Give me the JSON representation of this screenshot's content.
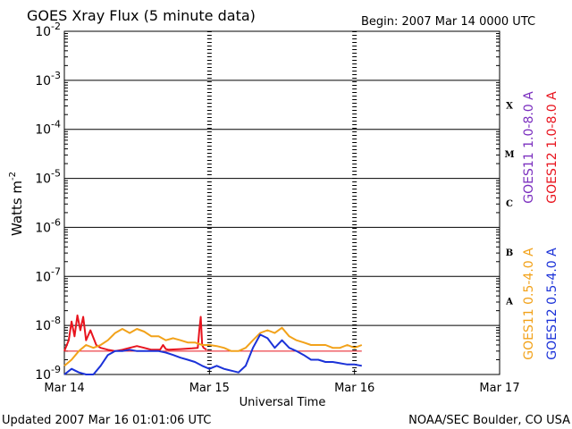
{
  "header": {
    "title": "GOES Xray Flux (5 minute data)",
    "begin": "Begin:  2007 Mar 14 0000 UTC"
  },
  "footer": {
    "updated": "Updated 2007 Mar 16 01:01:06 UTC",
    "credit": "NOAA/SEC Boulder, CO USA"
  },
  "colors": {
    "grid": "#000000",
    "goes11_long": "#7b2fbf",
    "goes12_long": "#e8141e",
    "goes11_short": "#f2a21a",
    "goes12_short": "#1b32d8",
    "threshold": "#e8141e"
  },
  "chart_data": {
    "type": "line",
    "title": "GOES Xray Flux (5 minute data)",
    "xlabel": "Universal Time",
    "ylabel": "Watts m",
    "ylabel_sup": "-2",
    "y_scale": "log",
    "ylim": [
      1e-09,
      0.01
    ],
    "xlim_days": [
      0,
      3
    ],
    "x_ticks": [
      {
        "day": 0,
        "label": "Mar 14"
      },
      {
        "day": 1,
        "label": "Mar 15"
      },
      {
        "day": 2,
        "label": "Mar 16"
      },
      {
        "day": 3,
        "label": "Mar 17"
      }
    ],
    "y_ticks": [
      {
        "base": "10",
        "exp": "-9"
      },
      {
        "base": "10",
        "exp": "-8"
      },
      {
        "base": "10",
        "exp": "-7"
      },
      {
        "base": "10",
        "exp": "-6"
      },
      {
        "base": "10",
        "exp": "-5"
      },
      {
        "base": "10",
        "exp": "-4"
      },
      {
        "base": "10",
        "exp": "-3"
      },
      {
        "base": "10",
        "exp": "-2"
      }
    ],
    "flare_classes": [
      "A",
      "B",
      "C",
      "M",
      "X"
    ],
    "grid": true,
    "legend": [
      {
        "name": "GOES11 1.0-8.0 A",
        "color": "#7b2fbf"
      },
      {
        "name": "GOES12 1.0-8.0 A",
        "color": "#e8141e"
      },
      {
        "name": "GOES11 0.5-4.0 A",
        "color": "#f2a21a"
      },
      {
        "name": "GOES12 0.5-4.0 A",
        "color": "#1b32d8"
      }
    ],
    "series": [
      {
        "name": "GOES12 1.0-8.0 A",
        "color": "#e8141e",
        "points": [
          [
            0.0,
            3e-09
          ],
          [
            0.03,
            5e-09
          ],
          [
            0.05,
            1.2e-08
          ],
          [
            0.07,
            6e-09
          ],
          [
            0.09,
            1.6e-08
          ],
          [
            0.11,
            8e-09
          ],
          [
            0.13,
            1.5e-08
          ],
          [
            0.15,
            5e-09
          ],
          [
            0.18,
            8e-09
          ],
          [
            0.22,
            4e-09
          ],
          [
            0.25,
            3.5e-09
          ],
          [
            0.3,
            3.2e-09
          ],
          [
            0.35,
            3e-09
          ],
          [
            0.4,
            3.2e-09
          ],
          [
            0.45,
            3.5e-09
          ],
          [
            0.5,
            3.8e-09
          ],
          [
            0.55,
            3.5e-09
          ],
          [
            0.6,
            3.2e-09
          ],
          [
            0.66,
            3.2e-09
          ],
          [
            0.68,
            4e-09
          ],
          [
            0.7,
            3.3e-09
          ],
          [
            0.72,
            3.2e-09
          ],
          [
            0.8,
            3.3e-09
          ],
          [
            0.88,
            3.4e-09
          ],
          [
            0.92,
            3.5e-09
          ],
          [
            0.93,
            8e-09
          ],
          [
            0.94,
            1.5e-08
          ],
          [
            0.95,
            4e-09
          ],
          [
            0.96,
            3.5e-09
          ],
          [
            0.98,
            3.2e-09
          ]
        ]
      },
      {
        "name": "GOES11 0.5-4.0 A",
        "color": "#f2a21a",
        "points": [
          [
            0.0,
            1.5e-09
          ],
          [
            0.05,
            2e-09
          ],
          [
            0.1,
            3e-09
          ],
          [
            0.15,
            4e-09
          ],
          [
            0.2,
            3.5e-09
          ],
          [
            0.25,
            4e-09
          ],
          [
            0.3,
            5e-09
          ],
          [
            0.35,
            7e-09
          ],
          [
            0.4,
            8.5e-09
          ],
          [
            0.45,
            7e-09
          ],
          [
            0.5,
            8.5e-09
          ],
          [
            0.55,
            7.5e-09
          ],
          [
            0.6,
            6e-09
          ],
          [
            0.65,
            6e-09
          ],
          [
            0.7,
            5e-09
          ],
          [
            0.75,
            5.5e-09
          ],
          [
            0.8,
            5e-09
          ],
          [
            0.85,
            4.5e-09
          ],
          [
            0.9,
            4.5e-09
          ],
          [
            0.95,
            4e-09
          ],
          [
            1.0,
            4e-09
          ],
          [
            1.05,
            3.8e-09
          ],
          [
            1.1,
            3.5e-09
          ],
          [
            1.15,
            3e-09
          ],
          [
            1.2,
            3e-09
          ],
          [
            1.25,
            3.5e-09
          ],
          [
            1.3,
            5e-09
          ],
          [
            1.35,
            7e-09
          ],
          [
            1.4,
            8e-09
          ],
          [
            1.45,
            7e-09
          ],
          [
            1.5,
            9e-09
          ],
          [
            1.55,
            6e-09
          ],
          [
            1.6,
            5e-09
          ],
          [
            1.65,
            4.5e-09
          ],
          [
            1.7,
            4e-09
          ],
          [
            1.75,
            4e-09
          ],
          [
            1.8,
            4e-09
          ],
          [
            1.85,
            3.5e-09
          ],
          [
            1.9,
            3.5e-09
          ],
          [
            1.95,
            4e-09
          ],
          [
            2.0,
            3.5e-09
          ],
          [
            2.05,
            4e-09
          ]
        ]
      },
      {
        "name": "GOES12 0.5-4.0 A",
        "color": "#1b32d8",
        "points": [
          [
            0.0,
            1e-09
          ],
          [
            0.05,
            1.3e-09
          ],
          [
            0.1,
            1.1e-09
          ],
          [
            0.15,
            1e-09
          ],
          [
            0.2,
            1e-09
          ],
          [
            0.25,
            1.5e-09
          ],
          [
            0.3,
            2.5e-09
          ],
          [
            0.35,
            3e-09
          ],
          [
            0.4,
            3e-09
          ],
          [
            0.45,
            3.2e-09
          ],
          [
            0.5,
            3e-09
          ],
          [
            0.55,
            3e-09
          ],
          [
            0.6,
            3e-09
          ],
          [
            0.65,
            3e-09
          ],
          [
            0.7,
            2.8e-09
          ],
          [
            0.75,
            2.5e-09
          ],
          [
            0.8,
            2.2e-09
          ],
          [
            0.85,
            2e-09
          ],
          [
            0.9,
            1.8e-09
          ],
          [
            0.95,
            1.5e-09
          ],
          [
            1.0,
            1.3e-09
          ],
          [
            1.05,
            1.5e-09
          ],
          [
            1.1,
            1.3e-09
          ],
          [
            1.15,
            1.2e-09
          ],
          [
            1.2,
            1.1e-09
          ],
          [
            1.25,
            1.5e-09
          ],
          [
            1.3,
            3.5e-09
          ],
          [
            1.35,
            6.5e-09
          ],
          [
            1.4,
            5.5e-09
          ],
          [
            1.45,
            3.5e-09
          ],
          [
            1.5,
            5e-09
          ],
          [
            1.55,
            3.5e-09
          ],
          [
            1.6,
            3e-09
          ],
          [
            1.65,
            2.5e-09
          ],
          [
            1.7,
            2e-09
          ],
          [
            1.75,
            2e-09
          ],
          [
            1.8,
            1.8e-09
          ],
          [
            1.85,
            1.8e-09
          ],
          [
            1.9,
            1.7e-09
          ],
          [
            1.95,
            1.6e-09
          ],
          [
            2.0,
            1.6e-09
          ],
          [
            2.05,
            1.5e-09
          ]
        ]
      }
    ],
    "threshold_line": {
      "y": 3e-09,
      "x_from": 0,
      "x_to": 2.05
    }
  }
}
